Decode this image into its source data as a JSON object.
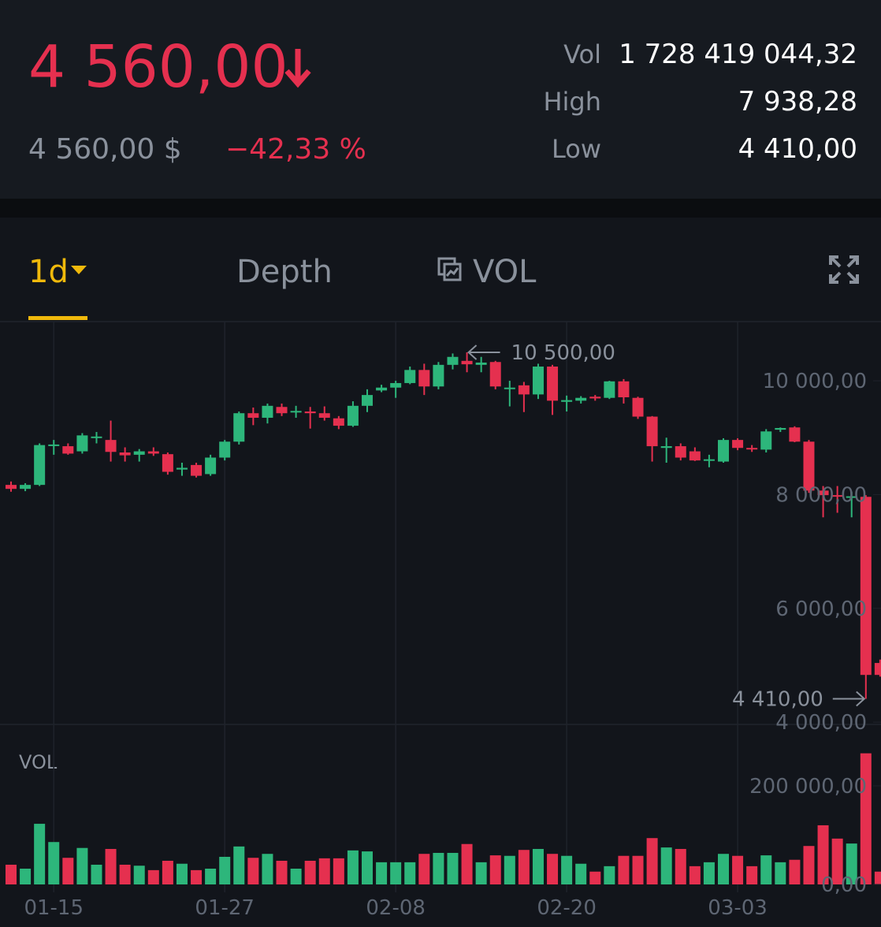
{
  "header": {
    "price": "4 560,00",
    "price_usd": "4 560,00 $",
    "change": "−42,33 %",
    "stats": [
      {
        "label": "Vol",
        "value": "1 728 419 044,32"
      },
      {
        "label": "High",
        "value": "7 938,28"
      },
      {
        "label": "Low",
        "value": "4 410,00"
      }
    ]
  },
  "tabs": [
    "1d",
    "Depth",
    "VOL"
  ],
  "chart_data": {
    "type": "candlestick",
    "categories": [
      null,
      null,
      null,
      "01-15",
      null,
      null,
      null,
      null,
      null,
      null,
      null,
      null,
      null,
      null,
      null,
      "01-27",
      null,
      null,
      null,
      null,
      null,
      null,
      null,
      null,
      null,
      null,
      null,
      "02-08",
      null,
      null,
      null,
      null,
      null,
      null,
      null,
      null,
      null,
      null,
      null,
      "02-20",
      null,
      null,
      null,
      null,
      null,
      null,
      null,
      null,
      null,
      null,
      null,
      "03-03",
      null,
      null,
      null,
      null,
      null,
      null,
      null,
      null,
      null,
      null
    ],
    "open": [
      8170,
      8100,
      8170,
      8860,
      8850,
      8760,
      9000,
      8960,
      8740,
      8700,
      8760,
      8710,
      8440,
      8520,
      8360,
      8650,
      8930,
      9430,
      9350,
      9540,
      9450,
      9460,
      9430,
      9340,
      9210,
      9560,
      9830,
      9880,
      9960,
      10190,
      9900,
      10280,
      10350,
      10280,
      10330,
      9860,
      9920,
      9760,
      10250,
      9630,
      9650,
      9720,
      9700,
      9990,
      9700,
      9370,
      8820,
      8850,
      8760,
      8600,
      8580,
      8960,
      8820,
      8790,
      9140,
      9180,
      8930,
      8070,
      7990,
      7950,
      7960,
      5040
    ],
    "high": [
      8230,
      8200,
      8900,
      8960,
      8900,
      9080,
      9100,
      9300,
      8830,
      8800,
      8830,
      8740,
      8560,
      8560,
      8700,
      8960,
      9460,
      9530,
      9600,
      9600,
      9560,
      9540,
      9550,
      9380,
      9640,
      9850,
      9930,
      10000,
      10250,
      10300,
      10330,
      10480,
      10500,
      10420,
      10350,
      10000,
      9980,
      10300,
      10280,
      9740,
      9730,
      9750,
      10000,
      10030,
      9720,
      9380,
      9000,
      8900,
      8830,
      8700,
      8990,
      8990,
      8870,
      9150,
      9180,
      9200,
      8960,
      8150,
      8150,
      8050,
      7990,
      5100
    ],
    "low": [
      8050,
      8060,
      8150,
      8700,
      8700,
      8720,
      8900,
      8580,
      8580,
      8580,
      8680,
      8350,
      8330,
      8300,
      8330,
      8600,
      8880,
      9220,
      9250,
      9380,
      9350,
      9160,
      9300,
      9150,
      9190,
      9450,
      9800,
      9700,
      9940,
      9750,
      9850,
      10200,
      10150,
      10150,
      9850,
      9550,
      9450,
      9680,
      9400,
      9460,
      9600,
      9650,
      9680,
      9600,
      9330,
      8580,
      8560,
      8600,
      8590,
      8480,
      8560,
      8780,
      8750,
      8740,
      9100,
      8920,
      8030,
      7600,
      7680,
      7600,
      4410,
      4800
    ],
    "close": [
      8100,
      8170,
      8870,
      8880,
      8720,
      9040,
      9020,
      8750,
      8690,
      8760,
      8720,
      8400,
      8470,
      8330,
      8650,
      8930,
      9430,
      9350,
      9560,
      9430,
      9470,
      9430,
      9350,
      9210,
      9560,
      9750,
      9880,
      9960,
      10190,
      9900,
      10280,
      10420,
      10290,
      10320,
      9900,
      9880,
      9760,
      10250,
      9650,
      9660,
      9700,
      9690,
      9990,
      9710,
      9370,
      8850,
      8850,
      8650,
      8600,
      8620,
      8960,
      8820,
      8800,
      9110,
      9170,
      8930,
      8070,
      7990,
      7980,
      7970,
      4830,
      4830
    ],
    "volume": [
      40000,
      32000,
      123000,
      86000,
      54000,
      74000,
      40000,
      72000,
      40000,
      38000,
      29000,
      48000,
      42000,
      29000,
      32000,
      56000,
      77000,
      54000,
      62000,
      48000,
      32000,
      48000,
      53000,
      53000,
      69000,
      67000,
      45000,
      45000,
      45000,
      62000,
      64000,
      64000,
      82000,
      45000,
      59000,
      58000,
      70000,
      72000,
      62000,
      58000,
      42000,
      26000,
      37000,
      58000,
      58000,
      94000,
      75000,
      72000,
      37000,
      45000,
      62000,
      58000,
      37000,
      59000,
      45000,
      50000,
      78000,
      120000,
      93000,
      83000,
      266000,
      26000
    ],
    "up_color": "#2db67b",
    "down_color": "#e5304f",
    "ylim": [
      3960,
      11040
    ],
    "yticks": [
      {
        "value": 4000,
        "label": "4 000,00"
      },
      {
        "value": 6000,
        "label": "6 000,00"
      },
      {
        "value": 8000,
        "label": "8 000,00"
      },
      {
        "value": 10000,
        "label": "10 000,00"
      }
    ],
    "volume_label": "VOL",
    "vol_ylim": [
      0,
      323000
    ],
    "vol_yticks": [
      {
        "value": 0,
        "label": "0,00"
      },
      {
        "value": 200000,
        "label": "200 000,00"
      }
    ],
    "high_marker": {
      "value": 10500,
      "label": "10 500,00"
    },
    "low_marker": {
      "value": 4410,
      "label": "4 410,00"
    }
  }
}
